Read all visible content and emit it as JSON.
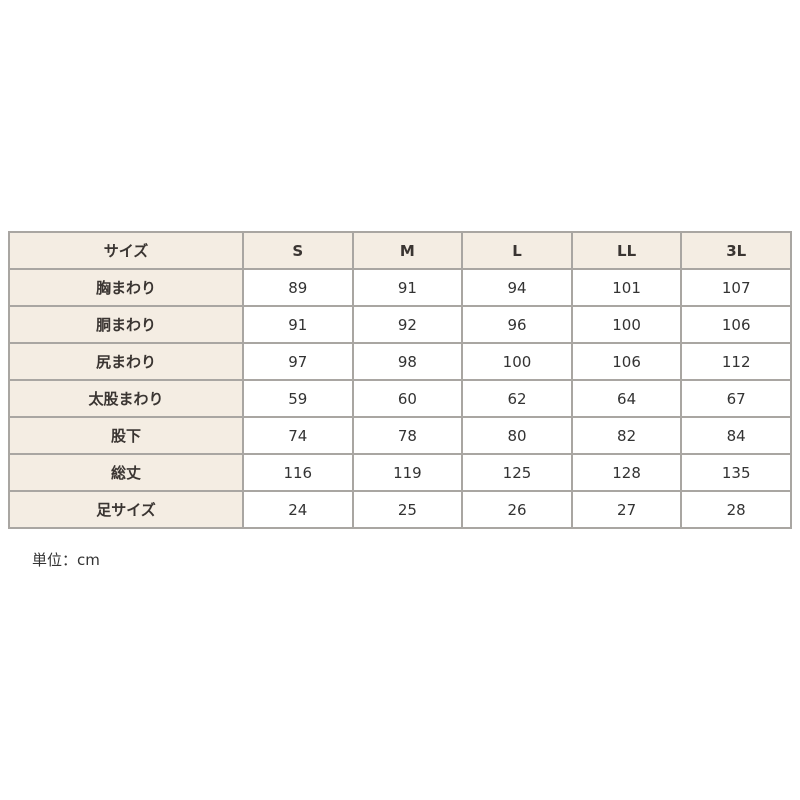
{
  "table": {
    "header": [
      "サイズ",
      "S",
      "M",
      "L",
      "LL",
      "3L"
    ],
    "rows": [
      {
        "label": "胸まわり",
        "values": [
          "89",
          "91",
          "94",
          "101",
          "107"
        ]
      },
      {
        "label": "胴まわり",
        "values": [
          "91",
          "92",
          "96",
          "100",
          "106"
        ]
      },
      {
        "label": "尻まわり",
        "values": [
          "97",
          "98",
          "100",
          "106",
          "112"
        ]
      },
      {
        "label": "太股まわり",
        "values": [
          "59",
          "60",
          "62",
          "64",
          "67"
        ]
      },
      {
        "label": "股下",
        "values": [
          "74",
          "78",
          "80",
          "82",
          "84"
        ]
      },
      {
        "label": "総丈",
        "values": [
          "116",
          "119",
          "125",
          "128",
          "135"
        ]
      },
      {
        "label": "足サイズ",
        "values": [
          "24",
          "25",
          "26",
          "27",
          "28"
        ]
      }
    ]
  },
  "unit_note": "単位：cm",
  "colors": {
    "header_bg": "#f4ede3",
    "border": "#a9a6a2"
  }
}
